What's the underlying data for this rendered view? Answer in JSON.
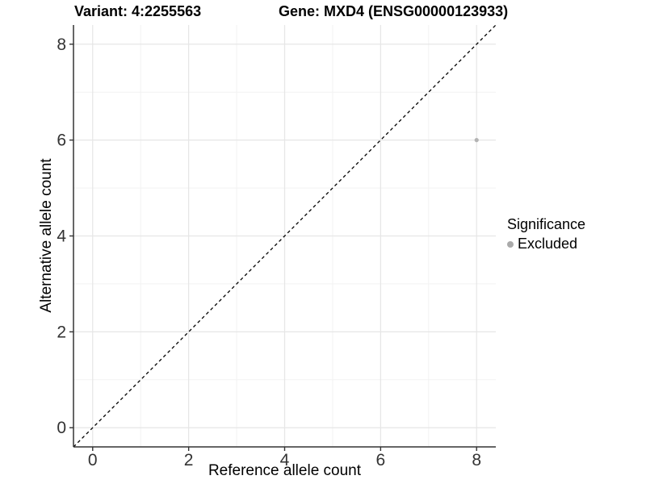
{
  "chart_data": {
    "type": "scatter",
    "title_left": "Variant: 4:2255563",
    "title_right": "Gene: MXD4 (ENSG00000123933)",
    "xlabel": "Reference allele count",
    "ylabel": "Alternative allele count",
    "xlim": [
      -0.4,
      8.4
    ],
    "ylim": [
      -0.4,
      8.4
    ],
    "x_major_ticks": [
      0,
      2,
      4,
      6,
      8
    ],
    "y_major_ticks": [
      0,
      2,
      4,
      6,
      8
    ],
    "x_minor_ticks": [
      1,
      3,
      5,
      7
    ],
    "y_minor_ticks": [
      1,
      3,
      5,
      7
    ],
    "grid": true,
    "identity_line": {
      "style": "dashed",
      "from": -0.4,
      "to": 8.4,
      "color": "#000000"
    },
    "points": [
      {
        "x": 8,
        "y": 6,
        "series": "Excluded",
        "color": "#b3b3b3"
      }
    ],
    "legend": {
      "position": "right",
      "title": "Significance",
      "items": [
        {
          "label": "Excluded",
          "color": "#aaaaaa"
        }
      ]
    }
  }
}
